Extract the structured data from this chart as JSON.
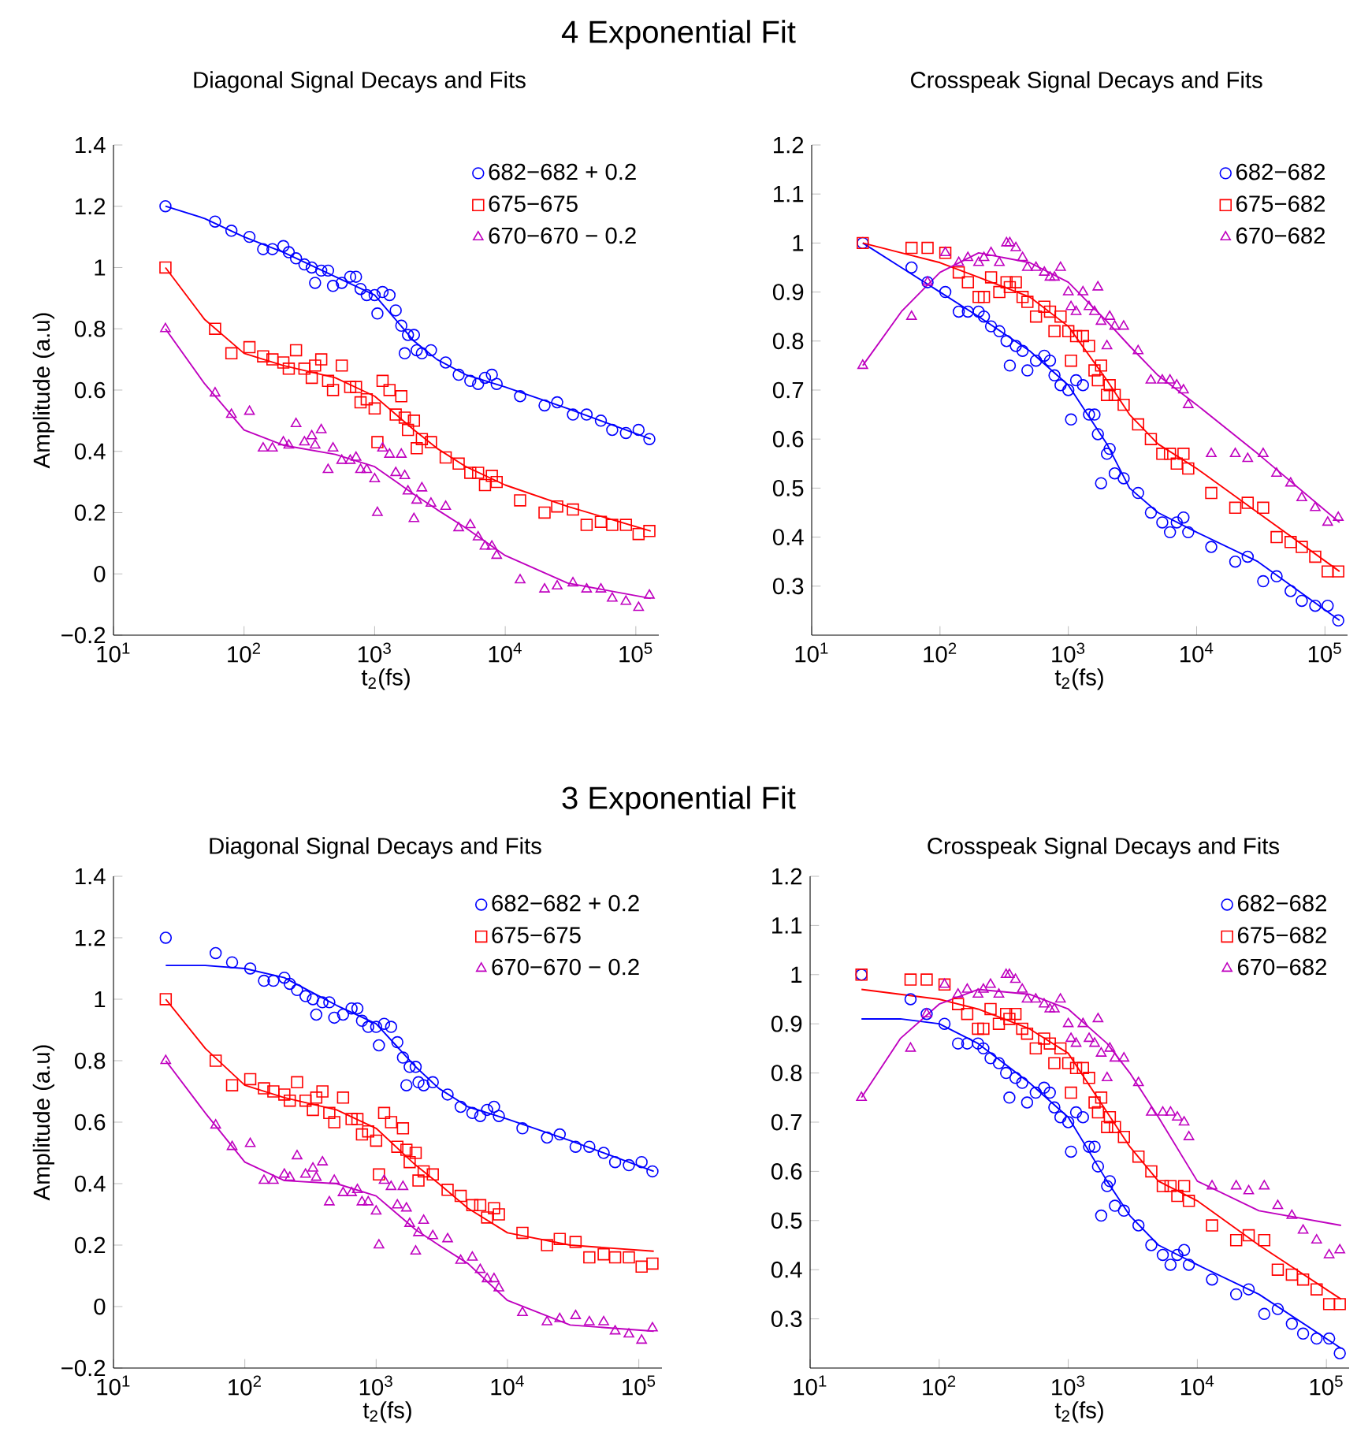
{
  "chart_data": [
    {
      "type": "scatter",
      "title": "4 Exponential Fit",
      "subtitle": "Diagonal Signal Decays and Fits",
      "xlabel": "t$_{2}$(fs)",
      "ylabel": "Amplitude (a.u)",
      "log": "x",
      "legend": "top right",
      "xlim": [
        10,
        150000
      ],
      "ylim": [
        -0.2,
        1.4
      ],
      "xticks": [
        {
          "value": 10,
          "label": "10$^{1}$"
        },
        {
          "value": 100,
          "label": "10$^{2}$"
        },
        {
          "value": 1000,
          "label": "10$^{3}$"
        },
        {
          "value": 10000,
          "label": "10$^{4}$"
        },
        {
          "value": 100000,
          "label": "10$^{5}$"
        }
      ],
      "yticks": [
        {
          "value": -0.2,
          "label": "−0.2"
        },
        0,
        0.2,
        0.4,
        0.6,
        0.8,
        1,
        1.2,
        1.4
      ],
      "x": [
        25,
        60,
        80,
        110,
        140,
        165,
        200,
        220,
        250,
        290,
        330,
        350,
        390,
        440,
        480,
        560,
        650,
        720,
        780,
        870,
        1000,
        1050,
        1150,
        1300,
        1450,
        1600,
        1700,
        1800,
        2000,
        2100,
        2300,
        2700,
        3500,
        4400,
        5400,
        6200,
        7000,
        7900,
        8600,
        13000,
        20000,
        25000,
        33000,
        42000,
        54000,
        66000,
        84000,
        105000,
        127000
      ],
      "series": [
        {
          "name": "682−682 + 0.2",
          "color": "#0000ff",
          "marker": "circle",
          "values": [
            1.2,
            1.15,
            1.12,
            1.1,
            1.06,
            1.06,
            1.07,
            1.05,
            1.03,
            1.01,
            1.0,
            0.95,
            0.99,
            0.99,
            0.94,
            0.95,
            0.97,
            0.97,
            0.93,
            0.91,
            0.91,
            0.85,
            0.92,
            0.91,
            0.86,
            0.81,
            0.72,
            0.78,
            0.78,
            0.73,
            0.72,
            0.73,
            0.69,
            0.65,
            0.63,
            0.62,
            0.64,
            0.65,
            0.62,
            0.58,
            0.55,
            0.56,
            0.52,
            0.52,
            0.5,
            0.47,
            0.46,
            0.47,
            0.44
          ]
        },
        {
          "name": "675−675",
          "color": "#ff0000",
          "marker": "square",
          "values": [
            1.0,
            0.8,
            0.72,
            0.74,
            0.71,
            0.7,
            0.69,
            0.67,
            0.73,
            0.67,
            0.64,
            0.68,
            0.7,
            0.63,
            0.6,
            0.68,
            0.61,
            0.61,
            0.56,
            0.57,
            0.54,
            0.43,
            0.63,
            0.6,
            0.52,
            0.58,
            0.51,
            0.47,
            0.5,
            0.41,
            0.44,
            0.43,
            0.38,
            0.36,
            0.33,
            0.33,
            0.29,
            0.32,
            0.3,
            0.24,
            0.2,
            0.22,
            0.21,
            0.16,
            0.17,
            0.16,
            0.16,
            0.13,
            0.14
          ]
        },
        {
          "name": "670−670 − 0.2",
          "color": "#bf00bf",
          "marker": "triangle",
          "values": [
            0.8,
            0.59,
            0.52,
            0.53,
            0.41,
            0.41,
            0.43,
            0.42,
            0.49,
            0.43,
            0.45,
            0.42,
            0.47,
            0.34,
            0.41,
            0.37,
            0.37,
            0.38,
            0.34,
            0.34,
            0.31,
            0.2,
            0.41,
            0.39,
            0.33,
            0.39,
            0.32,
            0.27,
            0.18,
            0.24,
            0.28,
            0.23,
            0.22,
            0.15,
            0.16,
            0.12,
            0.09,
            0.09,
            0.06,
            -0.02,
            -0.05,
            -0.04,
            -0.03,
            -0.05,
            -0.05,
            -0.08,
            -0.09,
            -0.11,
            -0.07
          ]
        },
        {
          "type": "line",
          "color": "#0000ff",
          "x": [
            25,
            50,
            100,
            200,
            500,
            1000,
            2000,
            3000,
            5000,
            10000,
            30000,
            130000
          ],
          "values": [
            1.2,
            1.16,
            1.1,
            1.05,
            0.97,
            0.91,
            0.76,
            0.7,
            0.65,
            0.61,
            0.54,
            0.44
          ]
        },
        {
          "type": "line",
          "color": "#ff0000",
          "x": [
            25,
            50,
            100,
            200,
            500,
            1000,
            2000,
            3000,
            5000,
            10000,
            30000,
            130000
          ],
          "values": [
            1.0,
            0.83,
            0.72,
            0.68,
            0.64,
            0.58,
            0.47,
            0.41,
            0.35,
            0.29,
            0.22,
            0.14
          ]
        },
        {
          "type": "line",
          "color": "#bf00bf",
          "x": [
            25,
            50,
            100,
            200,
            500,
            1000,
            2000,
            3000,
            5000,
            10000,
            30000,
            130000
          ],
          "values": [
            0.8,
            0.62,
            0.47,
            0.42,
            0.39,
            0.35,
            0.26,
            0.21,
            0.15,
            0.06,
            -0.03,
            -0.08
          ]
        }
      ]
    },
    {
      "type": "scatter",
      "subtitle": "Crosspeak Signal Decays and Fits",
      "xlabel": "t$_{2}$(fs)",
      "log": "x",
      "legend": "top right",
      "xlim": [
        10,
        150000
      ],
      "ylim": [
        0.2,
        1.2
      ],
      "xticks": [
        {
          "value": 10,
          "label": "10$^{1}$"
        },
        {
          "value": 100,
          "label": "10$^{2}$"
        },
        {
          "value": 1000,
          "label": "10$^{3}$"
        },
        {
          "value": 10000,
          "label": "10$^{4}$"
        },
        {
          "value": 100000,
          "label": "10$^{5}$"
        }
      ],
      "yticks": [
        0.3,
        0.4,
        0.5,
        0.6,
        0.7,
        0.8,
        0.9,
        1,
        1.1,
        1.2
      ],
      "x": [
        25,
        60,
        80,
        110,
        140,
        165,
        200,
        220,
        250,
        290,
        330,
        350,
        390,
        440,
        480,
        560,
        650,
        720,
        780,
        870,
        1000,
        1050,
        1150,
        1300,
        1450,
        1600,
        1700,
        1800,
        2000,
        2100,
        2300,
        2700,
        3500,
        4400,
        5400,
        6200,
        7000,
        7900,
        8600,
        13000,
        20000,
        25000,
        33000,
        42000,
        54000,
        66000,
        84000,
        105000,
        127000
      ],
      "series": [
        {
          "name": "682−682",
          "color": "#0000ff",
          "marker": "circle",
          "values": [
            1.0,
            0.95,
            0.92,
            0.9,
            0.86,
            0.86,
            0.86,
            0.85,
            0.83,
            0.82,
            0.8,
            0.75,
            0.79,
            0.78,
            0.74,
            0.76,
            0.77,
            0.76,
            0.73,
            0.71,
            0.7,
            0.64,
            0.72,
            0.71,
            0.65,
            0.65,
            0.61,
            0.51,
            0.57,
            0.58,
            0.53,
            0.52,
            0.49,
            0.45,
            0.43,
            0.41,
            0.43,
            0.44,
            0.41,
            0.38,
            0.35,
            0.36,
            0.31,
            0.32,
            0.29,
            0.27,
            0.26,
            0.26,
            0.23
          ]
        },
        {
          "name": "675−682",
          "color": "#ff0000",
          "marker": "square",
          "values": [
            1.0,
            0.99,
            0.99,
            0.98,
            0.94,
            0.92,
            0.89,
            0.89,
            0.93,
            0.9,
            0.92,
            0.91,
            0.92,
            0.89,
            0.88,
            0.85,
            0.87,
            0.86,
            0.82,
            0.85,
            0.82,
            0.76,
            0.81,
            0.81,
            0.79,
            0.74,
            0.72,
            0.75,
            0.69,
            0.71,
            0.69,
            0.67,
            0.63,
            0.6,
            0.57,
            0.57,
            0.55,
            0.57,
            0.54,
            0.49,
            0.46,
            0.47,
            0.46,
            0.4,
            0.39,
            0.38,
            0.36,
            0.33,
            0.33
          ]
        },
        {
          "name": "670−682",
          "color": "#bf00bf",
          "marker": "triangle",
          "values": [
            0.75,
            0.85,
            0.92,
            0.98,
            0.96,
            0.97,
            0.96,
            0.97,
            0.98,
            0.96,
            1.0,
            1.0,
            0.99,
            0.97,
            0.95,
            0.95,
            0.94,
            0.93,
            0.93,
            0.95,
            0.9,
            0.87,
            0.86,
            0.9,
            0.87,
            0.86,
            0.91,
            0.84,
            0.79,
            0.85,
            0.83,
            0.83,
            0.78,
            0.72,
            0.72,
            0.72,
            0.71,
            0.7,
            0.67,
            0.57,
            0.57,
            0.56,
            0.57,
            0.53,
            0.51,
            0.48,
            0.46,
            0.43,
            0.44
          ]
        },
        {
          "type": "line",
          "color": "#0000ff",
          "x": [
            25,
            50,
            100,
            200,
            500,
            1000,
            2000,
            3000,
            5000,
            10000,
            30000,
            130000
          ],
          "values": [
            1.0,
            0.95,
            0.9,
            0.85,
            0.78,
            0.71,
            0.59,
            0.5,
            0.45,
            0.41,
            0.35,
            0.23
          ]
        },
        {
          "type": "line",
          "color": "#ff0000",
          "x": [
            25,
            50,
            100,
            200,
            500,
            1000,
            2000,
            3000,
            5000,
            10000,
            30000,
            130000
          ],
          "values": [
            1.0,
            0.98,
            0.96,
            0.93,
            0.89,
            0.83,
            0.72,
            0.65,
            0.59,
            0.54,
            0.45,
            0.33
          ]
        },
        {
          "type": "line",
          "color": "#bf00bf",
          "x": [
            25,
            50,
            100,
            200,
            500,
            1000,
            2000,
            3000,
            5000,
            10000,
            30000,
            130000
          ],
          "values": [
            0.75,
            0.86,
            0.94,
            0.98,
            0.96,
            0.92,
            0.84,
            0.79,
            0.73,
            0.67,
            0.57,
            0.43
          ]
        }
      ]
    },
    {
      "type": "scatter",
      "title": "3 Exponential Fit",
      "subtitle": "Diagonal Signal Decays and Fits",
      "xlabel": "t$_{2}$(fs)",
      "ylabel": "Amplitude (a.u)",
      "log": "x",
      "legend": "top right",
      "xlim": [
        10,
        150000
      ],
      "ylim": [
        -0.2,
        1.4
      ],
      "xticks": [
        {
          "value": 10,
          "label": "10$^{1}$"
        },
        {
          "value": 100,
          "label": "10$^{2}$"
        },
        {
          "value": 1000,
          "label": "10$^{3}$"
        },
        {
          "value": 10000,
          "label": "10$^{4}$"
        },
        {
          "value": 100000,
          "label": "10$^{5}$"
        }
      ],
      "yticks": [
        {
          "value": -0.2,
          "label": "−0.2"
        },
        0,
        0.2,
        0.4,
        0.6,
        0.8,
        1,
        1.2,
        1.4
      ],
      "x": [
        25,
        60,
        80,
        110,
        140,
        165,
        200,
        220,
        250,
        290,
        330,
        350,
        390,
        440,
        480,
        560,
        650,
        720,
        780,
        870,
        1000,
        1050,
        1150,
        1300,
        1450,
        1600,
        1700,
        1800,
        2000,
        2100,
        2300,
        2700,
        3500,
        4400,
        5400,
        6200,
        7000,
        7900,
        8600,
        13000,
        20000,
        25000,
        33000,
        42000,
        54000,
        66000,
        84000,
        105000,
        127000
      ],
      "series": [
        {
          "name": "682−682 + 0.2",
          "color": "#0000ff",
          "marker": "circle",
          "values": [
            1.2,
            1.15,
            1.12,
            1.1,
            1.06,
            1.06,
            1.07,
            1.05,
            1.03,
            1.01,
            1.0,
            0.95,
            0.99,
            0.99,
            0.94,
            0.95,
            0.97,
            0.97,
            0.93,
            0.91,
            0.91,
            0.85,
            0.92,
            0.91,
            0.86,
            0.81,
            0.72,
            0.78,
            0.78,
            0.73,
            0.72,
            0.73,
            0.69,
            0.65,
            0.63,
            0.62,
            0.64,
            0.65,
            0.62,
            0.58,
            0.55,
            0.56,
            0.52,
            0.52,
            0.5,
            0.47,
            0.46,
            0.47,
            0.44
          ]
        },
        {
          "name": "675−675",
          "color": "#ff0000",
          "marker": "square",
          "values": [
            1.0,
            0.8,
            0.72,
            0.74,
            0.71,
            0.7,
            0.69,
            0.67,
            0.73,
            0.67,
            0.64,
            0.68,
            0.7,
            0.63,
            0.6,
            0.68,
            0.61,
            0.61,
            0.56,
            0.57,
            0.54,
            0.43,
            0.63,
            0.6,
            0.52,
            0.58,
            0.51,
            0.47,
            0.5,
            0.41,
            0.44,
            0.43,
            0.38,
            0.36,
            0.33,
            0.33,
            0.29,
            0.32,
            0.3,
            0.24,
            0.2,
            0.22,
            0.21,
            0.16,
            0.17,
            0.16,
            0.16,
            0.13,
            0.14
          ]
        },
        {
          "name": "670−670 − 0.2",
          "color": "#bf00bf",
          "marker": "triangle",
          "values": [
            0.8,
            0.59,
            0.52,
            0.53,
            0.41,
            0.41,
            0.43,
            0.42,
            0.49,
            0.43,
            0.45,
            0.42,
            0.47,
            0.34,
            0.41,
            0.37,
            0.37,
            0.38,
            0.34,
            0.34,
            0.31,
            0.2,
            0.41,
            0.39,
            0.33,
            0.39,
            0.32,
            0.27,
            0.18,
            0.24,
            0.28,
            0.23,
            0.22,
            0.15,
            0.16,
            0.12,
            0.09,
            0.09,
            0.06,
            -0.02,
            -0.05,
            -0.04,
            -0.03,
            -0.05,
            -0.05,
            -0.08,
            -0.09,
            -0.11,
            -0.07
          ]
        },
        {
          "type": "line",
          "color": "#0000ff",
          "x": [
            25,
            50,
            100,
            200,
            500,
            1000,
            2000,
            3000,
            5000,
            10000,
            30000,
            130000
          ],
          "values": [
            1.11,
            1.11,
            1.1,
            1.07,
            0.98,
            0.92,
            0.78,
            0.71,
            0.65,
            0.61,
            0.54,
            0.44
          ]
        },
        {
          "type": "line",
          "color": "#ff0000",
          "x": [
            25,
            50,
            100,
            200,
            500,
            1000,
            2000,
            3000,
            5000,
            10000,
            30000,
            130000
          ],
          "values": [
            1.0,
            0.84,
            0.72,
            0.68,
            0.64,
            0.58,
            0.46,
            0.4,
            0.32,
            0.24,
            0.2,
            0.18
          ]
        },
        {
          "type": "line",
          "color": "#bf00bf",
          "x": [
            25,
            50,
            100,
            200,
            500,
            1000,
            2000,
            3000,
            5000,
            10000,
            30000,
            130000
          ],
          "values": [
            0.8,
            0.63,
            0.47,
            0.41,
            0.4,
            0.36,
            0.25,
            0.2,
            0.14,
            0.02,
            -0.06,
            -0.08
          ]
        }
      ]
    },
    {
      "type": "scatter",
      "subtitle": "Crosspeak Signal Decays and Fits",
      "xlabel": "t$_{2}$(fs)",
      "log": "x",
      "legend": "top right",
      "xlim": [
        10,
        150000
      ],
      "ylim": [
        0.2,
        1.2
      ],
      "xticks": [
        {
          "value": 10,
          "label": "10$^{1}$"
        },
        {
          "value": 100,
          "label": "10$^{2}$"
        },
        {
          "value": 1000,
          "label": "10$^{3}$"
        },
        {
          "value": 10000,
          "label": "10$^{4}$"
        },
        {
          "value": 100000,
          "label": "10$^{5}$"
        }
      ],
      "yticks": [
        0.3,
        0.4,
        0.5,
        0.6,
        0.7,
        0.8,
        0.9,
        1,
        1.1,
        1.2
      ],
      "x": [
        25,
        60,
        80,
        110,
        140,
        165,
        200,
        220,
        250,
        290,
        330,
        350,
        390,
        440,
        480,
        560,
        650,
        720,
        780,
        870,
        1000,
        1050,
        1150,
        1300,
        1450,
        1600,
        1700,
        1800,
        2000,
        2100,
        2300,
        2700,
        3500,
        4400,
        5400,
        6200,
        7000,
        7900,
        8600,
        13000,
        20000,
        25000,
        33000,
        42000,
        54000,
        66000,
        84000,
        105000,
        127000
      ],
      "series": [
        {
          "name": "682−682",
          "color": "#0000ff",
          "marker": "circle",
          "values": [
            1.0,
            0.95,
            0.92,
            0.9,
            0.86,
            0.86,
            0.86,
            0.85,
            0.83,
            0.82,
            0.8,
            0.75,
            0.79,
            0.78,
            0.74,
            0.76,
            0.77,
            0.76,
            0.73,
            0.71,
            0.7,
            0.64,
            0.72,
            0.71,
            0.65,
            0.65,
            0.61,
            0.51,
            0.57,
            0.58,
            0.53,
            0.52,
            0.49,
            0.45,
            0.43,
            0.41,
            0.43,
            0.44,
            0.41,
            0.38,
            0.35,
            0.36,
            0.31,
            0.32,
            0.29,
            0.27,
            0.26,
            0.26,
            0.23
          ]
        },
        {
          "name": "675−682",
          "color": "#ff0000",
          "marker": "square",
          "values": [
            1.0,
            0.99,
            0.99,
            0.98,
            0.94,
            0.92,
            0.89,
            0.89,
            0.93,
            0.9,
            0.92,
            0.91,
            0.92,
            0.89,
            0.88,
            0.85,
            0.87,
            0.86,
            0.82,
            0.85,
            0.82,
            0.76,
            0.81,
            0.81,
            0.79,
            0.74,
            0.72,
            0.75,
            0.69,
            0.71,
            0.69,
            0.67,
            0.63,
            0.6,
            0.57,
            0.57,
            0.55,
            0.57,
            0.54,
            0.49,
            0.46,
            0.47,
            0.46,
            0.4,
            0.39,
            0.38,
            0.36,
            0.33,
            0.33
          ]
        },
        {
          "name": "670−682",
          "color": "#bf00bf",
          "marker": "triangle",
          "values": [
            0.75,
            0.85,
            0.92,
            0.98,
            0.96,
            0.97,
            0.96,
            0.97,
            0.98,
            0.96,
            1.0,
            1.0,
            0.99,
            0.97,
            0.95,
            0.95,
            0.94,
            0.93,
            0.93,
            0.95,
            0.9,
            0.87,
            0.86,
            0.9,
            0.87,
            0.86,
            0.91,
            0.84,
            0.79,
            0.85,
            0.83,
            0.83,
            0.78,
            0.72,
            0.72,
            0.72,
            0.71,
            0.7,
            0.67,
            0.57,
            0.57,
            0.56,
            0.57,
            0.53,
            0.51,
            0.48,
            0.46,
            0.43,
            0.44
          ]
        },
        {
          "type": "line",
          "color": "#0000ff",
          "x": [
            25,
            50,
            100,
            200,
            500,
            1000,
            2000,
            3000,
            5000,
            10000,
            30000,
            130000
          ],
          "values": [
            0.91,
            0.91,
            0.9,
            0.86,
            0.78,
            0.71,
            0.58,
            0.51,
            0.45,
            0.41,
            0.35,
            0.24
          ]
        },
        {
          "type": "line",
          "color": "#ff0000",
          "x": [
            25,
            50,
            100,
            200,
            500,
            1000,
            2000,
            3000,
            5000,
            10000,
            30000,
            130000
          ],
          "values": [
            0.97,
            0.96,
            0.95,
            0.93,
            0.89,
            0.84,
            0.72,
            0.65,
            0.58,
            0.54,
            0.45,
            0.34
          ]
        },
        {
          "type": "line",
          "color": "#bf00bf",
          "x": [
            25,
            50,
            100,
            200,
            500,
            1000,
            2000,
            3000,
            5000,
            10000,
            30000,
            130000
          ],
          "values": [
            0.75,
            0.87,
            0.94,
            0.97,
            0.96,
            0.93,
            0.86,
            0.8,
            0.71,
            0.58,
            0.52,
            0.49
          ]
        }
      ]
    }
  ]
}
